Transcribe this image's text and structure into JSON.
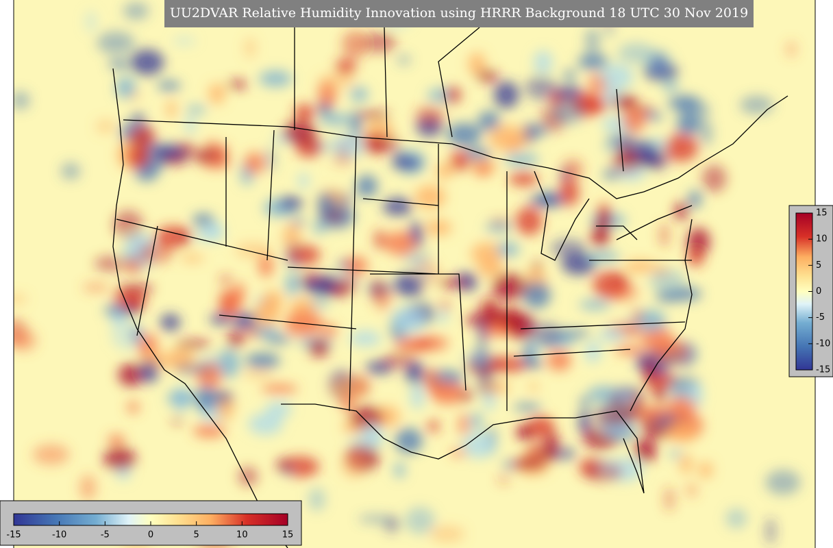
{
  "title": "UU2DVAR Relative Humidity Innovation using HRRR Background 18 UTC 30 Nov 2019",
  "colorbar_vertical": {
    "range": [
      -15,
      15
    ],
    "ticks": [
      15,
      10,
      5,
      0,
      -5,
      -10,
      -15
    ]
  },
  "colorbar_horizontal": {
    "range": [
      -15,
      15
    ],
    "ticks": [
      -15,
      -10,
      -5,
      0,
      5,
      10,
      15
    ]
  }
}
